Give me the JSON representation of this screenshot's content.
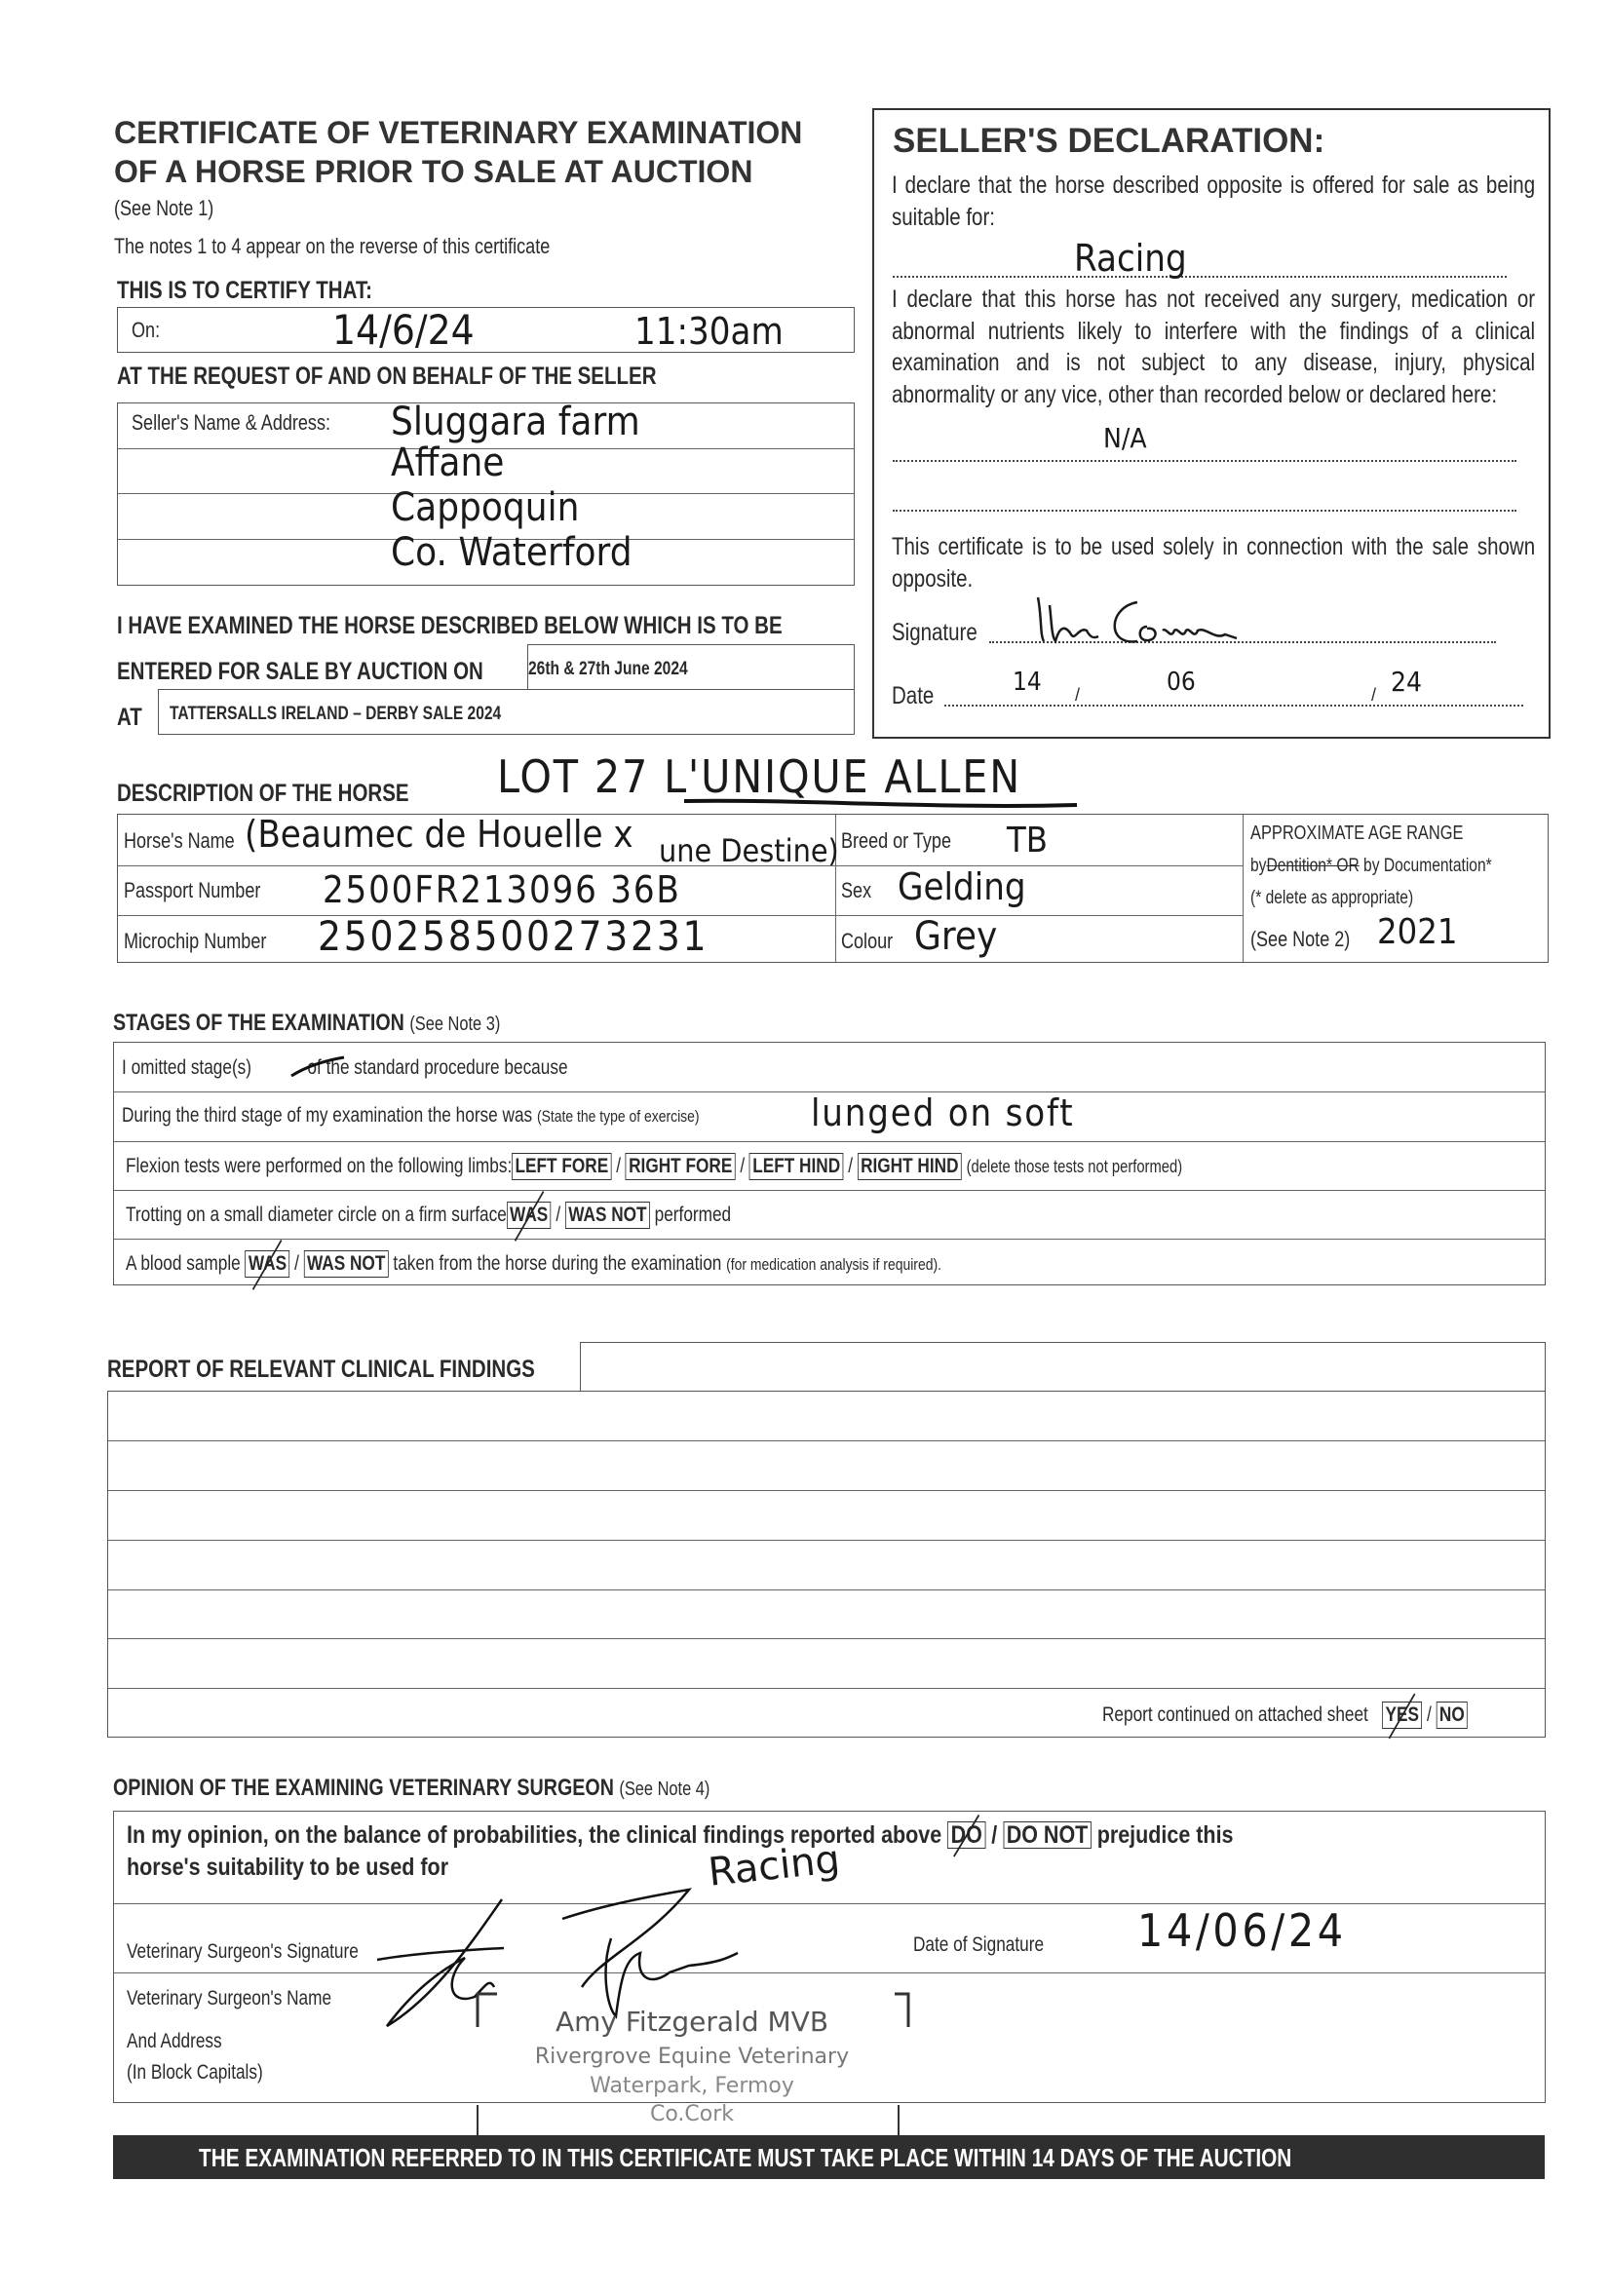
{
  "header": {
    "title_line1": "CERTIFICATE OF VETERINARY EXAMINATION",
    "title_line2": "OF A HORSE PRIOR TO SALE AT AUCTION",
    "see_note": "(See Note 1)",
    "notes_text": "The notes 1 to 4 appear on the reverse of this certificate"
  },
  "certify": {
    "heading": "THIS IS TO CERTIFY THAT:",
    "on_label": "On:",
    "on_date": "14/6/24",
    "on_time": "11:30am",
    "request_heading": "AT THE REQUEST OF AND ON BEHALF OF THE SELLER",
    "seller_label": "Seller's Name & Address:",
    "seller_address": [
      "Sluggara farm",
      "Affane",
      "Cappoquin",
      "Co. Waterford"
    ],
    "examined_line": "I HAVE EXAMINED THE HORSE DESCRIBED BELOW WHICH IS TO BE",
    "entered_label": "ENTERED FOR SALE BY AUCTION ON",
    "sale_dates": "26th & 27th June 2024",
    "at_label": "AT",
    "sale_name": "TATTERSALLS IRELAND – DERBY SALE 2024"
  },
  "declaration": {
    "heading": "SELLER'S DECLARATION:",
    "intro": "I declare that the horse described opposite is offered for sale as being suitable for:",
    "suitable_for": "Racing",
    "statement": "I declare that this horse has not received any surgery, medication or abnormal nutrients likely to interfere with the findings of a clinical examination and is not subject to any disease, injury, physical abnormality or any vice, other than recorded below or declared here:",
    "declared_here": "N/A",
    "usage_note": "This certificate is to be used solely in connection with the sale shown opposite.",
    "signature_label": "Signature",
    "date_label": "Date",
    "date_day": "14",
    "date_month": "06",
    "date_year": "24"
  },
  "horse": {
    "heading": "DESCRIPTION OF THE HORSE",
    "lot_note": "LOT 27  L'UNIQUE ALLEN",
    "name_label": "Horse's Name",
    "name_line1": "(Beaumec de Houelle x",
    "name_line2": "une Destine)",
    "passport_label": "Passport Number",
    "passport": "2500FR213096 36B",
    "microchip_label": "Microchip Number",
    "microchip": "250258500273231",
    "breed_label": "Breed or Type",
    "breed": "TB",
    "sex_label": "Sex",
    "sex": "Gelding",
    "colour_label": "Colour",
    "colour": "Grey",
    "age_heading": "APPROXIMATE AGE RANGE",
    "age_by": "by",
    "age_dentition": "Dentition* OR",
    "age_documentation": "by Documentation*",
    "age_delete_note": "(* delete as appropriate)",
    "age_note": "(See Note 2)",
    "age_value": "2021"
  },
  "stages": {
    "heading": "STAGES OF THE EXAMINATION",
    "note": "(See Note 3)",
    "omitted_prefix": "I omitted stage(s)",
    "omitted_suffix": "of the standard procedure because",
    "third_stage": "During the third stage of my examination the horse was",
    "third_stage_note": "(State the type of exercise)",
    "third_stage_value": "lunged on soft",
    "flexion_label": "Flexion tests were performed on the following limbs:",
    "flexion_limbs": [
      "LEFT FORE",
      "RIGHT FORE",
      "LEFT HIND",
      "RIGHT HIND"
    ],
    "flexion_note": "(delete those tests not performed)",
    "trotting_label": "Trotting on a small diameter circle on a firm surface",
    "was": "WAS",
    "was_not": "WAS NOT",
    "performed": "performed",
    "blood_label": "A blood sample",
    "blood_suffix": "taken from the horse during the examination",
    "blood_note": "(for medication analysis if required)."
  },
  "report": {
    "heading": "REPORT OF RELEVANT CLINICAL FINDINGS",
    "continued_label": "Report continued on attached sheet",
    "yes": "YES",
    "no": "NO"
  },
  "opinion": {
    "heading": "OPINION OF THE EXAMINING VETERINARY SURGEON",
    "note": "(See Note 4)",
    "text_before": "In my opinion, on the balance of probabilities, the clinical findings reported above",
    "do": "DO",
    "do_not": "DO NOT",
    "text_after": "prejudice this",
    "text_line2": "horse's suitability to be used for",
    "used_for": "Racing",
    "signature_label": "Veterinary Surgeon's Signature",
    "date_label": "Date of Signature",
    "date_value": "14/06/24",
    "name_label": "Veterinary Surgeon's Name",
    "address_label": "And Address",
    "block_caps": "(In Block Capitals)",
    "stamp_name": "Amy Fitzgerald MVB",
    "stamp_practice": "Rivergrove Equine Veterinary",
    "stamp_town": "Waterpark, Fermoy",
    "stamp_county": "Co.Cork"
  },
  "footer": {
    "banner": "THE EXAMINATION REFERRED TO IN THIS CERTIFICATE MUST TAKE PLACE WITHIN 14 DAYS OF THE AUCTION"
  }
}
